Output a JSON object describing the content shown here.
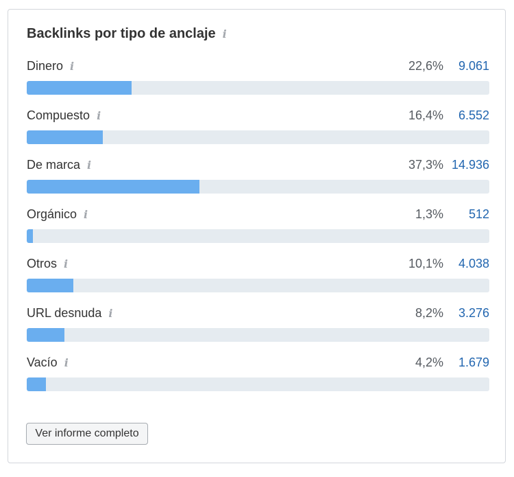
{
  "widget": {
    "title": "Backlinks por tipo de anclaje",
    "button_label": "Ver informe completo",
    "colors": {
      "bar": "#6aaeef",
      "track": "#e5ebf0",
      "count": "#2266b0"
    }
  },
  "rows": [
    {
      "label": "Dinero",
      "percent": "22,6%",
      "count": "9.061",
      "fraction": 0.226
    },
    {
      "label": "Compuesto",
      "percent": "16,4%",
      "count": "6.552",
      "fraction": 0.164
    },
    {
      "label": "De marca",
      "percent": "37,3%",
      "count": "14.936",
      "fraction": 0.373
    },
    {
      "label": "Orgánico",
      "percent": "1,3%",
      "count": "512",
      "fraction": 0.013
    },
    {
      "label": "Otros",
      "percent": "10,1%",
      "count": "4.038",
      "fraction": 0.101
    },
    {
      "label": "URL desnuda",
      "percent": "8,2%",
      "count": "3.276",
      "fraction": 0.082
    },
    {
      "label": "Vacío",
      "percent": "4,2%",
      "count": "1.679",
      "fraction": 0.042
    }
  ]
}
